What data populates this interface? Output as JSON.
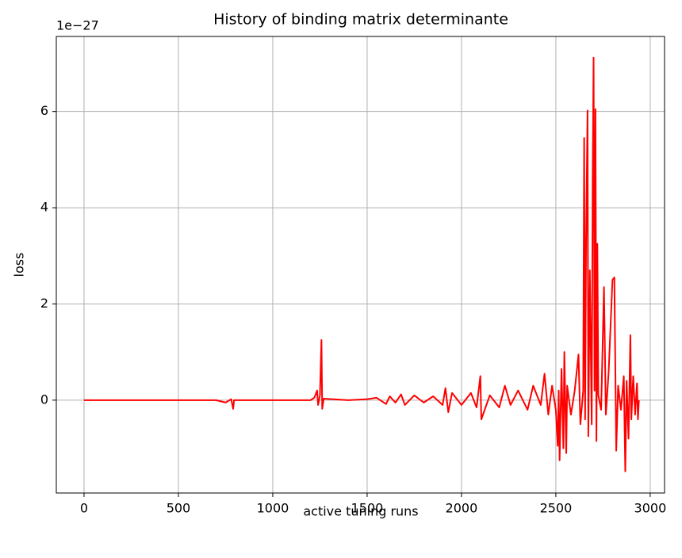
{
  "chart_data": {
    "type": "line",
    "title": "History of binding matrix determinante",
    "xlabel": "active tuning runs",
    "ylabel": "loss",
    "offset_label": "1e−27",
    "x": [
      0,
      700,
      750,
      780,
      790,
      795,
      900,
      1200,
      1220,
      1235,
      1240,
      1250,
      1258,
      1262,
      1270,
      1400,
      1500,
      1550,
      1600,
      1620,
      1650,
      1680,
      1700,
      1750,
      1800,
      1850,
      1900,
      1915,
      1930,
      1950,
      2000,
      2050,
      2080,
      2100,
      2105,
      2150,
      2200,
      2230,
      2260,
      2300,
      2350,
      2380,
      2420,
      2440,
      2460,
      2480,
      2500,
      2510,
      2515,
      2520,
      2530,
      2540,
      2545,
      2555,
      2560,
      2580,
      2600,
      2620,
      2630,
      2645,
      2650,
      2655,
      2660,
      2668,
      2672,
      2680,
      2690,
      2695,
      2700,
      2705,
      2710,
      2715,
      2720,
      2725,
      2740,
      2755,
      2765,
      2780,
      2800,
      2810,
      2820,
      2830,
      2845,
      2860,
      2868,
      2875,
      2885,
      2895,
      2900,
      2910,
      2920,
      2930,
      2935,
      2940
    ],
    "series": [
      {
        "name": "loss",
        "color": "#ff0000",
        "values": [
          0,
          0,
          -0.05,
          0.02,
          -0.18,
          0,
          0,
          0,
          0.05,
          0.2,
          -0.1,
          0.1,
          1.25,
          -0.18,
          0.03,
          0,
          0.02,
          0.05,
          -0.08,
          0.08,
          -0.05,
          0.12,
          -0.1,
          0.1,
          -0.05,
          0.08,
          -0.1,
          0.25,
          -0.25,
          0.15,
          -0.1,
          0.15,
          -0.15,
          0.5,
          -0.4,
          0.1,
          -0.15,
          0.3,
          -0.1,
          0.2,
          -0.2,
          0.3,
          -0.1,
          0.55,
          -0.3,
          0.3,
          -0.2,
          -0.95,
          0.2,
          -1.25,
          0.65,
          -1.0,
          1.0,
          -1.1,
          0.3,
          -0.3,
          0.2,
          0.95,
          -0.5,
          0.2,
          5.45,
          -0.4,
          3.2,
          6.02,
          -0.75,
          2.7,
          -0.5,
          4.5,
          7.12,
          0.2,
          6.05,
          -0.85,
          3.25,
          0.1,
          -0.2,
          2.35,
          -0.3,
          0.6,
          2.5,
          2.55,
          -1.05,
          0.3,
          -0.2,
          0.5,
          -1.48,
          0.4,
          -0.8,
          1.35,
          -0.4,
          0.5,
          -0.3,
          0.35,
          -0.4,
          0
        ]
      }
    ],
    "xlim": [
      -147,
      3076
    ],
    "xticks": [
      0,
      500,
      1000,
      1500,
      2000,
      2500,
      3000
    ],
    "ylim": [
      -1.93,
      7.56
    ],
    "yticks": [
      0,
      2,
      4,
      6
    ],
    "grid": true
  }
}
